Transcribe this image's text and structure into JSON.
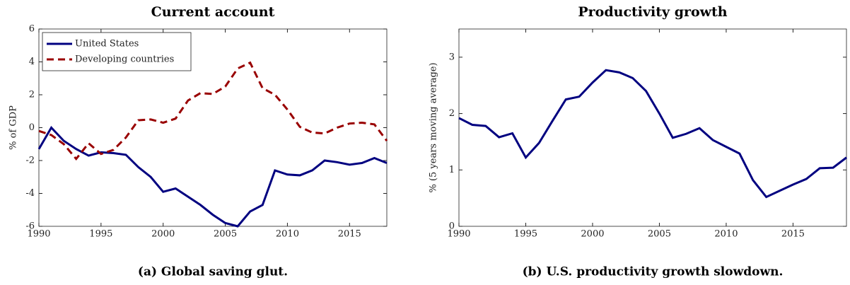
{
  "chart_data": [
    {
      "type": "line",
      "title": "Current account",
      "ylabel": "% of GDP",
      "caption": "(a) Global saving glut.",
      "x": [
        1990,
        1991,
        1992,
        1993,
        1994,
        1995,
        1996,
        1997,
        1998,
        1999,
        2000,
        2001,
        2002,
        2003,
        2004,
        2005,
        2006,
        2007,
        2008,
        2009,
        2010,
        2011,
        2012,
        2013,
        2014,
        2015,
        2016,
        2017,
        2018
      ],
      "series": [
        {
          "name": "United States",
          "color": "#000080",
          "dash": false,
          "values": [
            -1.3,
            0.0,
            -0.8,
            -1.3,
            -1.7,
            -1.5,
            -1.55,
            -1.65,
            -2.4,
            -3.0,
            -3.9,
            -3.7,
            -4.2,
            -4.7,
            -5.3,
            -5.8,
            -6.0,
            -5.1,
            -4.7,
            -2.6,
            -2.85,
            -2.9,
            -2.6,
            -2.0,
            -2.1,
            -2.25,
            -2.15,
            -1.85,
            -2.15
          ]
        },
        {
          "name": "Developing countries",
          "color": "#990000",
          "dash": true,
          "values": [
            -0.2,
            -0.45,
            -1.0,
            -1.9,
            -0.95,
            -1.6,
            -1.35,
            -0.6,
            0.45,
            0.5,
            0.3,
            0.55,
            1.65,
            2.1,
            2.05,
            2.5,
            3.6,
            3.95,
            2.4,
            2.0,
            1.1,
            0.05,
            -0.3,
            -0.35,
            0.0,
            0.25,
            0.3,
            0.2,
            -0.8
          ]
        }
      ],
      "xlim": [
        1990,
        2018
      ],
      "xticks": [
        1990,
        1995,
        2000,
        2005,
        2010,
        2015
      ],
      "ylim": [
        -6,
        6
      ],
      "yticks": [
        -6,
        -4,
        -2,
        0,
        2,
        4,
        6
      ],
      "legend": "upper-left"
    },
    {
      "type": "line",
      "title": "Productivity growth",
      "ylabel": "% (5 years moving average)",
      "caption": "(b) U.S. productivity growth slowdown.",
      "x": [
        1990,
        1991,
        1992,
        1993,
        1994,
        1995,
        1996,
        1997,
        1998,
        1999,
        2000,
        2001,
        2002,
        2003,
        2004,
        2005,
        2006,
        2007,
        2008,
        2009,
        2010,
        2011,
        2012,
        2013,
        2014,
        2015,
        2016,
        2017,
        2018,
        2019
      ],
      "series": [
        {
          "color": "#000080",
          "dash": false,
          "values": [
            1.92,
            1.8,
            1.78,
            1.58,
            1.65,
            1.22,
            1.48,
            1.87,
            2.25,
            2.3,
            2.55,
            2.77,
            2.73,
            2.63,
            2.4,
            2.0,
            1.57,
            1.64,
            1.74,
            1.53,
            1.41,
            1.29,
            0.82,
            0.52,
            0.63,
            0.74,
            0.84,
            1.03,
            1.04,
            1.22
          ]
        }
      ],
      "xlim": [
        1990,
        2019
      ],
      "xticks": [
        1990,
        1995,
        2000,
        2005,
        2010,
        2015
      ],
      "ylim": [
        0,
        3.5
      ],
      "yticks": [
        0,
        1,
        2,
        3
      ]
    }
  ]
}
